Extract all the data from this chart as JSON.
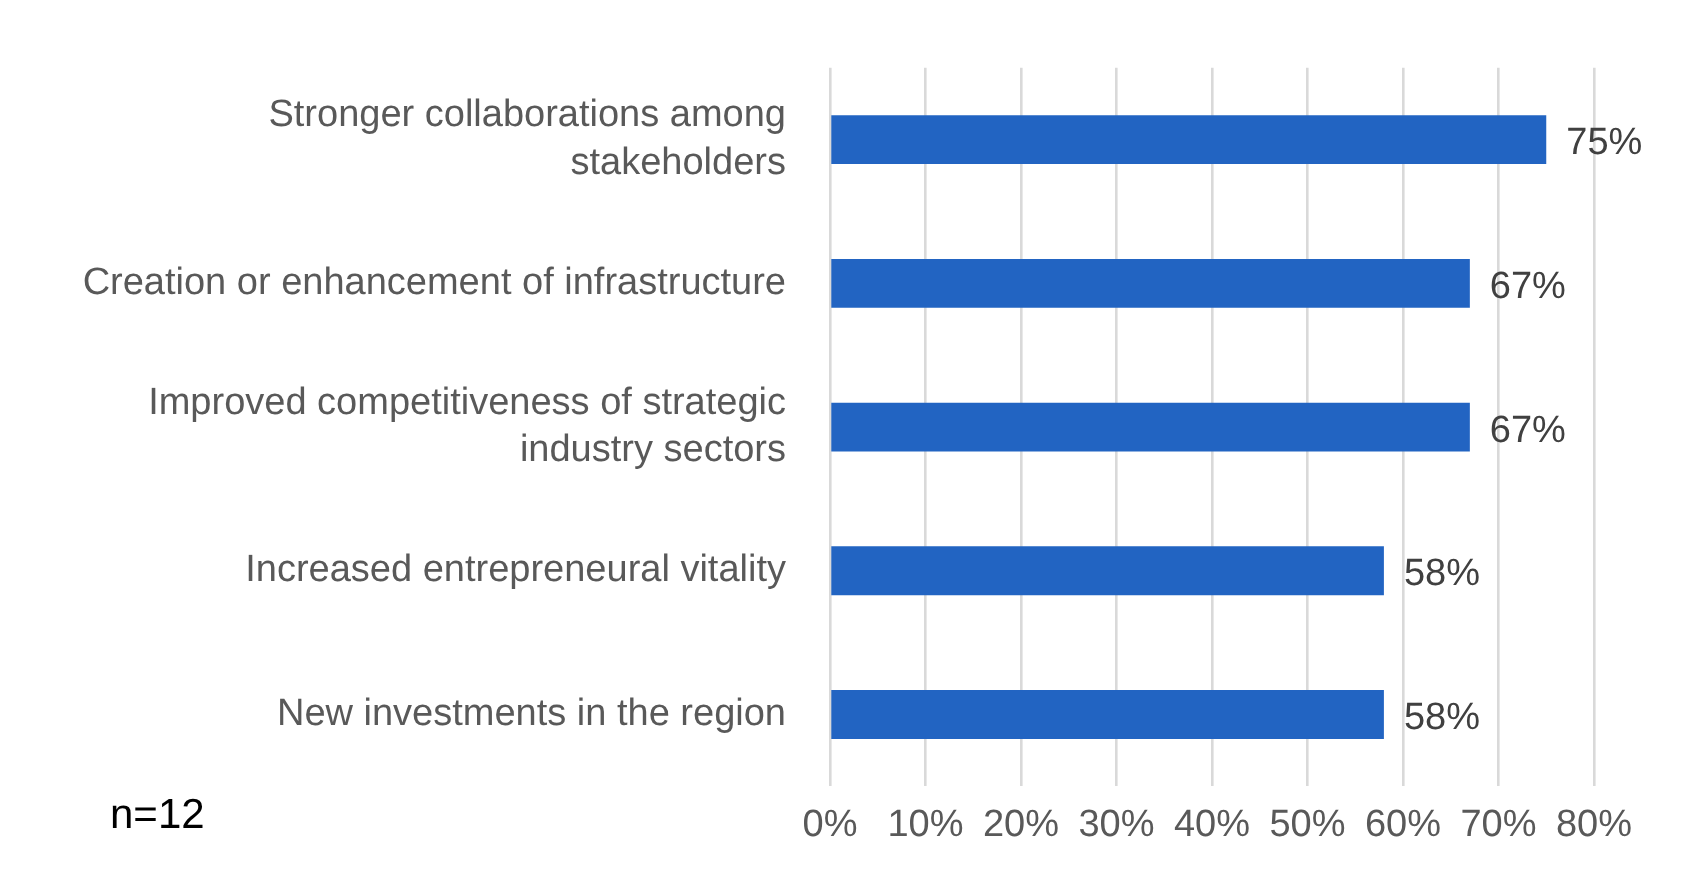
{
  "chart_data": {
    "type": "bar",
    "orientation": "horizontal",
    "categories": [
      "Stronger collaborations among stakeholders",
      "Creation or enhancement of infrastructure",
      "Improved competitiveness of strategic industry sectors",
      "Increased entrepreneural vitality",
      "New investments in the region"
    ],
    "values": [
      75,
      67,
      67,
      58,
      58
    ],
    "value_labels": [
      "75%",
      "67%",
      "67%",
      "58%",
      "58%"
    ],
    "color": "#2264c2",
    "xlim": [
      0,
      80
    ],
    "xticks": [
      {
        "value": 0,
        "label": "0%"
      },
      {
        "value": 10,
        "label": "10%"
      },
      {
        "value": 20,
        "label": "20%"
      },
      {
        "value": 30,
        "label": "30%"
      },
      {
        "value": 40,
        "label": "40%"
      },
      {
        "value": 50,
        "label": "50%"
      },
      {
        "value": 60,
        "label": "60%"
      },
      {
        "value": 70,
        "label": "70%"
      },
      {
        "value": 80,
        "label": "80%"
      }
    ],
    "grid": "x",
    "annotations": [
      "n=12"
    ]
  }
}
